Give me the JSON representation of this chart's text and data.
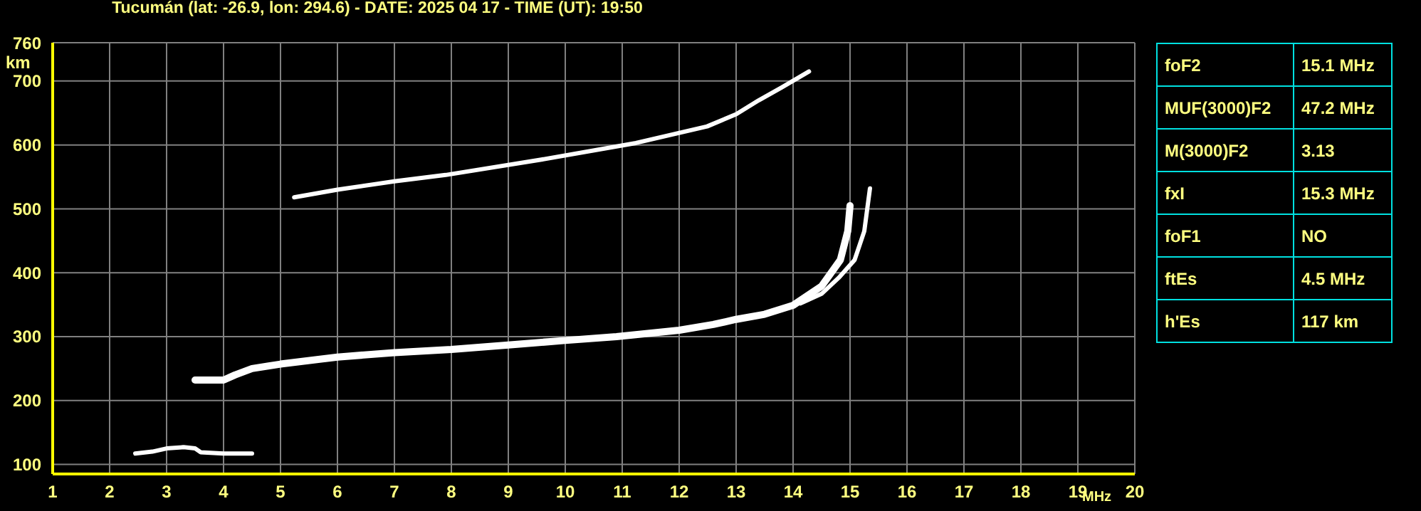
{
  "chart_data": [
    {
      "type": "line",
      "title": "Tucumán (lat: -26.9, lon: 294.6) - DATE: 2025 04 17 - TIME (UT): 19:50",
      "xlabel": "MHz",
      "ylabel": "km",
      "marker": "none",
      "line_style": "solid",
      "grid": true,
      "legend": false,
      "xlim": [
        1,
        20
      ],
      "xticks": [
        1,
        2,
        3,
        4,
        5,
        6,
        7,
        8,
        9,
        10,
        11,
        12,
        13,
        14,
        15,
        16,
        17,
        18,
        19,
        20
      ],
      "ylim": [
        85,
        760
      ],
      "yticks": [
        100,
        200,
        300,
        400,
        500,
        600,
        700,
        760
      ],
      "series": [
        {
          "color": "#ffffff",
          "x": [
            2.45,
            2.75,
            3.0,
            3.3,
            3.5,
            3.6,
            4.0,
            4.5
          ],
          "values": [
            117,
            120,
            125,
            127,
            125,
            119,
            117,
            117
          ]
        },
        {
          "color": "#ffffff",
          "x": [
            3.5,
            4.0,
            4.2,
            4.5,
            5.0,
            6.0,
            7.0,
            8.0,
            9.0,
            10.0,
            10.9,
            12.0,
            12.6,
            13.0,
            13.5,
            14.0,
            14.5,
            14.83,
            14.96,
            15.0
          ],
          "values": [
            232,
            232,
            240,
            250,
            257,
            268,
            275,
            280,
            287,
            294,
            300,
            310,
            319,
            327,
            335,
            349,
            379,
            420,
            465,
            505
          ]
        },
        {
          "color": "#ffffff",
          "x": [
            14.13,
            14.5,
            14.8,
            15.08,
            15.25,
            15.35
          ],
          "values": [
            352,
            367,
            392,
            420,
            465,
            532
          ]
        },
        {
          "color": "#ffffff",
          "x": [
            5.24,
            6.0,
            7.0,
            7.9,
            9.58,
            11.24,
            12.49,
            13.0,
            13.4,
            13.8,
            14.28
          ],
          "values": [
            518,
            530,
            543,
            553,
            577,
            603,
            629,
            648,
            670,
            690,
            715
          ]
        }
      ]
    },
    {
      "type": "other",
      "annotations": [
        "foF2",
        "15.1 MHz",
        "MUF(3000)F2",
        "47.2 MHz",
        "M(3000)F2",
        "3.13",
        "fxI",
        "15.3 MHz",
        "foF1",
        "NO",
        "ftEs",
        "4.5 MHz",
        "h'Es",
        "117 km"
      ]
    }
  ]
}
